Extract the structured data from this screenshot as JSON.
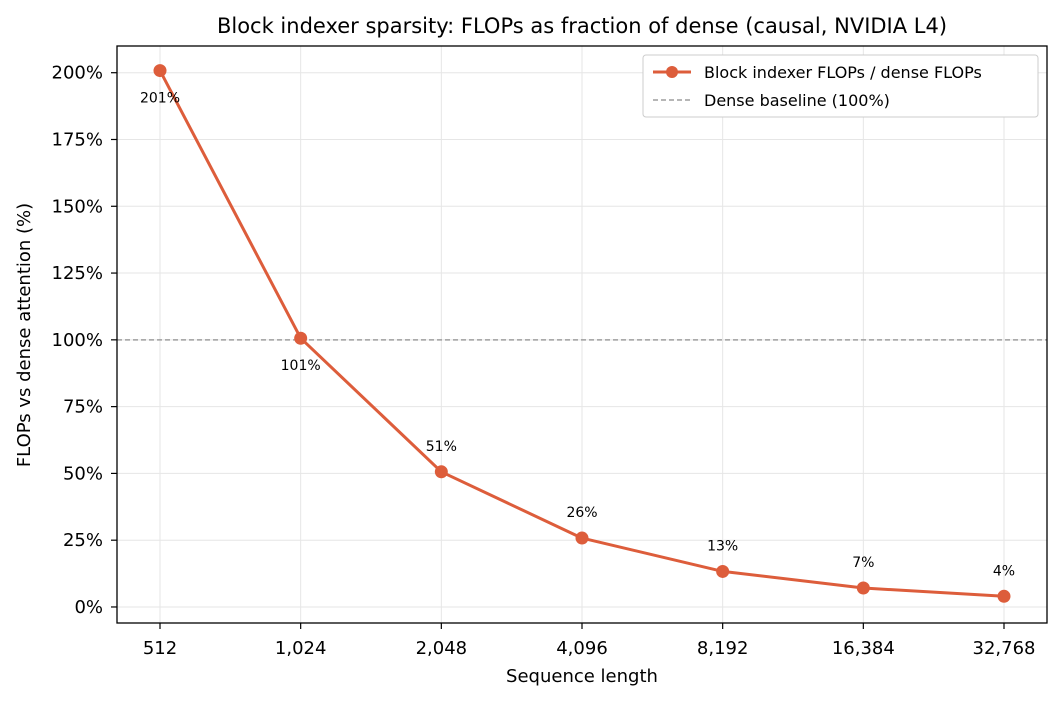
{
  "chart_data": {
    "type": "line",
    "title": "Block indexer sparsity: FLOPs as fraction of dense (causal, NVIDIA L4)",
    "xlabel": "Sequence length",
    "ylabel": "FLOPs vs dense attention (%)",
    "x_scale": "log2",
    "categories": [
      "512",
      "1,024",
      "2,048",
      "4,096",
      "8,192",
      "16,384",
      "32,768"
    ],
    "x": [
      512,
      1024,
      2048,
      4096,
      8192,
      16384,
      32768
    ],
    "series": [
      {
        "name": "Block indexer FLOPs / dense FLOPs",
        "values": [
          200.8,
          100.6,
          50.6,
          25.8,
          13.3,
          7.1,
          4.0
        ],
        "data_labels": [
          "201%",
          "101%",
          "51%",
          "26%",
          "13%",
          "7%",
          "4%"
        ],
        "color": "#dd5d3b",
        "marker": "circle"
      }
    ],
    "reference_lines": [
      {
        "name": "Dense baseline (100%)",
        "y": 100,
        "style": "dashed",
        "color": "#9e9e9e"
      }
    ],
    "ylim": [
      -6,
      210
    ],
    "yticks": [
      0,
      25,
      50,
      75,
      100,
      125,
      150,
      175,
      200
    ],
    "ytick_labels": [
      "0%",
      "25%",
      "50%",
      "75%",
      "100%",
      "125%",
      "150%",
      "175%",
      "200%"
    ],
    "grid": true,
    "legend_position": "top-right"
  }
}
